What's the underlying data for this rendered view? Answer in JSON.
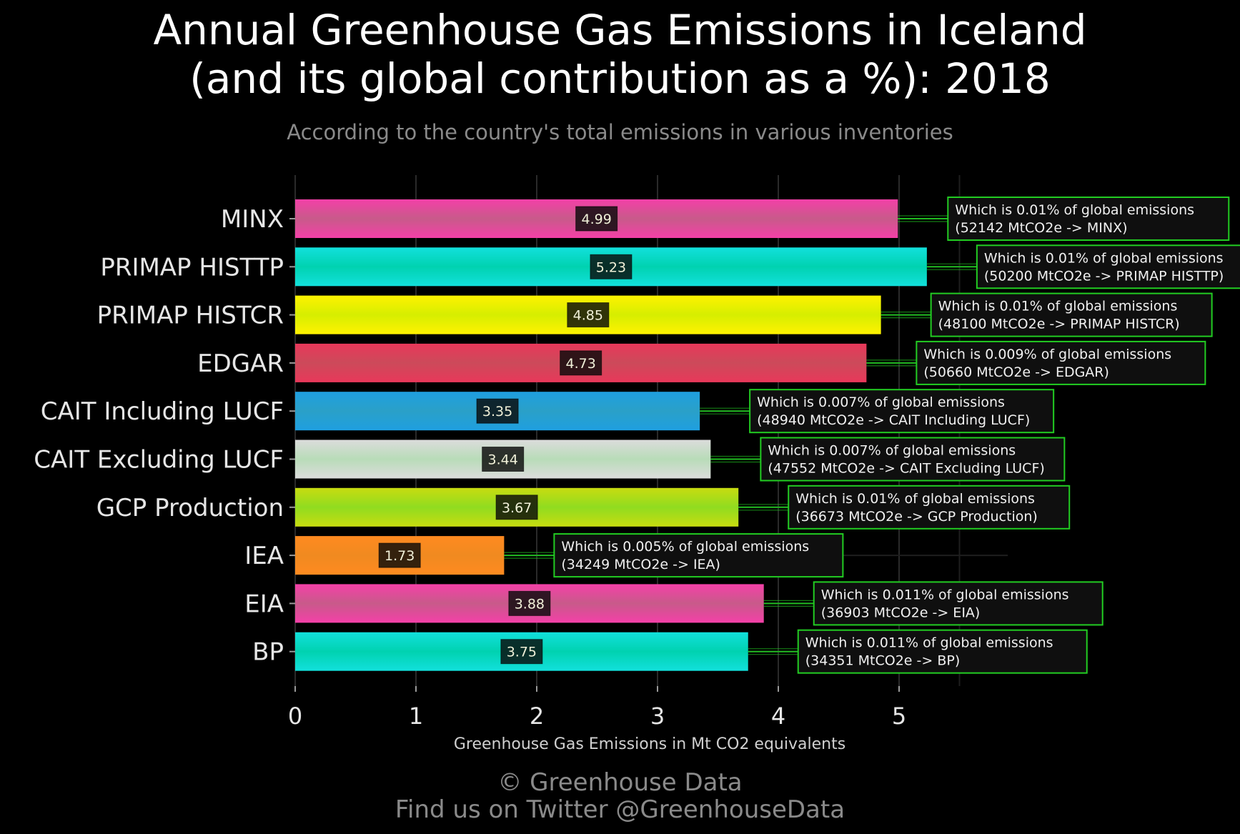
{
  "header": {
    "title_line1": "Annual Greenhouse Gas Emissions in Iceland",
    "title_line2": "(and its global contribution as a %): 2018",
    "subtitle": "According to the country's total emissions in various inventories"
  },
  "footer": {
    "copyright": "© Greenhouse Data",
    "twitter": "Find us on Twitter @GreenhouseData"
  },
  "chart_data": {
    "type": "bar",
    "orientation": "horizontal",
    "xlabel": "Greenhouse Gas Emissions in Mt CO2 equivalents",
    "ylabel": "",
    "xlim": [
      0,
      5.6
    ],
    "xticks": [
      0,
      1,
      2,
      3,
      4,
      5
    ],
    "grid": true,
    "categories": [
      "MINX",
      "PRIMAP HISTTP",
      "PRIMAP HISTCR",
      "EDGAR",
      "CAIT Including LUCF",
      "CAIT Excluding LUCF",
      "GCP Production",
      "IEA",
      "EIA",
      "BP"
    ],
    "values": [
      4.99,
      5.23,
      4.85,
      4.73,
      3.35,
      3.44,
      3.67,
      1.73,
      3.88,
      3.75
    ],
    "value_labels": [
      "4.99",
      "5.23",
      "4.85",
      "4.73",
      "3.35",
      "3.44",
      "3.67",
      "1.73",
      "3.88",
      "3.75"
    ],
    "annotations": [
      [
        "Which is 0.01% of global emissions",
        "(52142 MtCO2e -> MINX)"
      ],
      [
        "Which is 0.01% of global emissions",
        "(50200 MtCO2e -> PRIMAP HISTTP)"
      ],
      [
        "Which is 0.01% of global emissions",
        "(48100 MtCO2e -> PRIMAP HISTCR)"
      ],
      [
        "Which is 0.009% of global emissions",
        "(50660 MtCO2e -> EDGAR)"
      ],
      [
        "Which is 0.007% of global emissions",
        "(48940 MtCO2e -> CAIT Including LUCF)"
      ],
      [
        "Which is 0.007% of global emissions",
        "(47552 MtCO2e -> CAIT Excluding LUCF)"
      ],
      [
        "Which is 0.01% of global emissions",
        "(36673 MtCO2e -> GCP Production)"
      ],
      [
        "Which is 0.005% of global emissions",
        "(34249 MtCO2e -> IEA)"
      ],
      [
        "Which is 0.011% of global emissions",
        "(36903 MtCO2e -> EIA)"
      ],
      [
        "Which is 0.011% of global emissions",
        "(34351 MtCO2e -> BP)"
      ]
    ],
    "bar_colors": [
      [
        "#f440a8",
        "#c85a8a"
      ],
      [
        "#12e0dc",
        "#00d2b0"
      ],
      [
        "#fff200",
        "#d6ee00"
      ],
      [
        "#e8385a",
        "#cc4a5a"
      ],
      [
        "#1f9fe0",
        "#2aa0c8"
      ],
      [
        "#dcdcdc",
        "#b8dcb8"
      ],
      [
        "#c8dc10",
        "#90dc20"
      ],
      [
        "#ff8a20",
        "#f08a20"
      ],
      [
        "#f440a8",
        "#c85a8a"
      ],
      [
        "#12e0dc",
        "#00d2b0"
      ]
    ],
    "annotation_border_color": "#22cc22",
    "connector_color": "#22cc22"
  }
}
